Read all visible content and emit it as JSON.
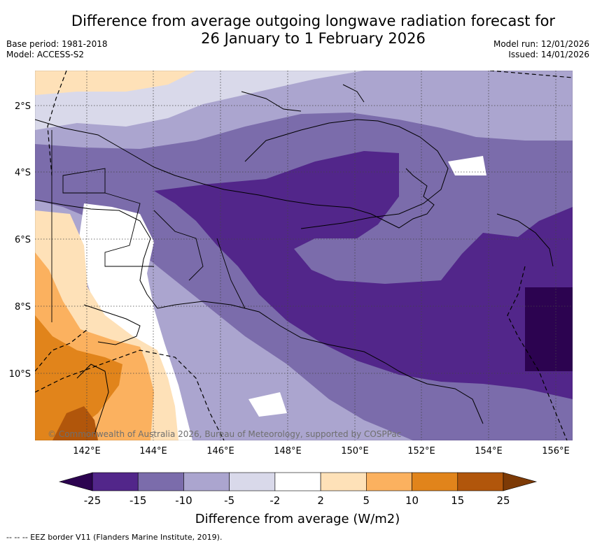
{
  "title": {
    "line1": "Difference from average outgoing longwave radiation forecast for",
    "line2": "26 January to 1 February 2026"
  },
  "meta": {
    "base_period": "Base period: 1981-2018",
    "model": "Model: ACCESS-S2",
    "model_run": "Model run: 12/01/2026",
    "issued": "Issued: 14/01/2026"
  },
  "map": {
    "lat_labels": [
      "2°S",
      "4°S",
      "6°S",
      "8°S",
      "10°S"
    ],
    "lon_labels": [
      "142°E",
      "144°E",
      "146°E",
      "148°E",
      "150°E",
      "152°E",
      "154°E",
      "156°E"
    ],
    "copyright": "© Commonwealth of Australia 2026, Bureau of Meteorology, supported by COSPPac"
  },
  "colorbar": {
    "ticks": [
      "-25",
      "-15",
      "-10",
      "-5",
      "-2",
      "2",
      "5",
      "10",
      "15",
      "25"
    ],
    "colors": [
      "#52268a",
      "#7b6cab",
      "#aba5cf",
      "#d9d9ea",
      "#ffffff",
      "#fee1b8",
      "#fbb15f",
      "#e1841b",
      "#b1560b"
    ],
    "low_extend_color": "#2c0350",
    "high_extend_color": "#7d3a06",
    "label": "Difference from average (W/m2)"
  },
  "legend": {
    "eez_text": "--  --  -- EEZ border V11 (Flanders Marine Institute, 2019)."
  }
}
